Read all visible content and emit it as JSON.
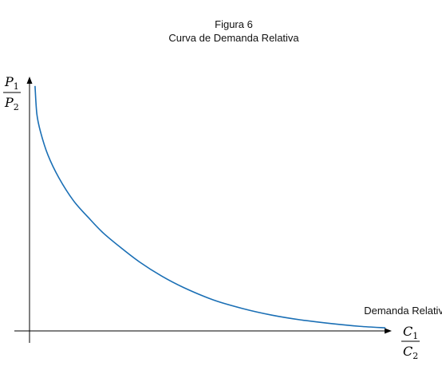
{
  "figure": {
    "title_line1": "Figura 6",
    "title_line2": "Curva de Demanda Relativa"
  },
  "chart_data": {
    "type": "line",
    "title": "Figura 6 — Curva de Demanda Relativa",
    "ylabel": {
      "numerator": "P",
      "numerator_sub": "1",
      "denominator": "P",
      "denominator_sub": "2"
    },
    "xlabel": {
      "numerator": "C",
      "numerator_sub": "1",
      "denominator": "C",
      "denominator_sub": "2"
    },
    "xlim": [
      0,
      1
    ],
    "ylim": [
      0,
      1
    ],
    "grid": false,
    "ticks": false,
    "series": [
      {
        "name": "Demanda Relativa",
        "color": "#1a6fb5",
        "x": [
          0.015,
          0.02,
          0.03,
          0.05,
          0.08,
          0.12,
          0.16,
          0.2,
          0.25,
          0.3,
          0.36,
          0.42,
          0.5,
          0.58,
          0.66,
          0.74,
          0.82,
          0.9,
          0.97
        ],
        "y": [
          0.96,
          0.85,
          0.78,
          0.69,
          0.6,
          0.51,
          0.445,
          0.385,
          0.325,
          0.27,
          0.215,
          0.17,
          0.122,
          0.088,
          0.062,
          0.043,
          0.029,
          0.018,
          0.012
        ]
      }
    ]
  }
}
